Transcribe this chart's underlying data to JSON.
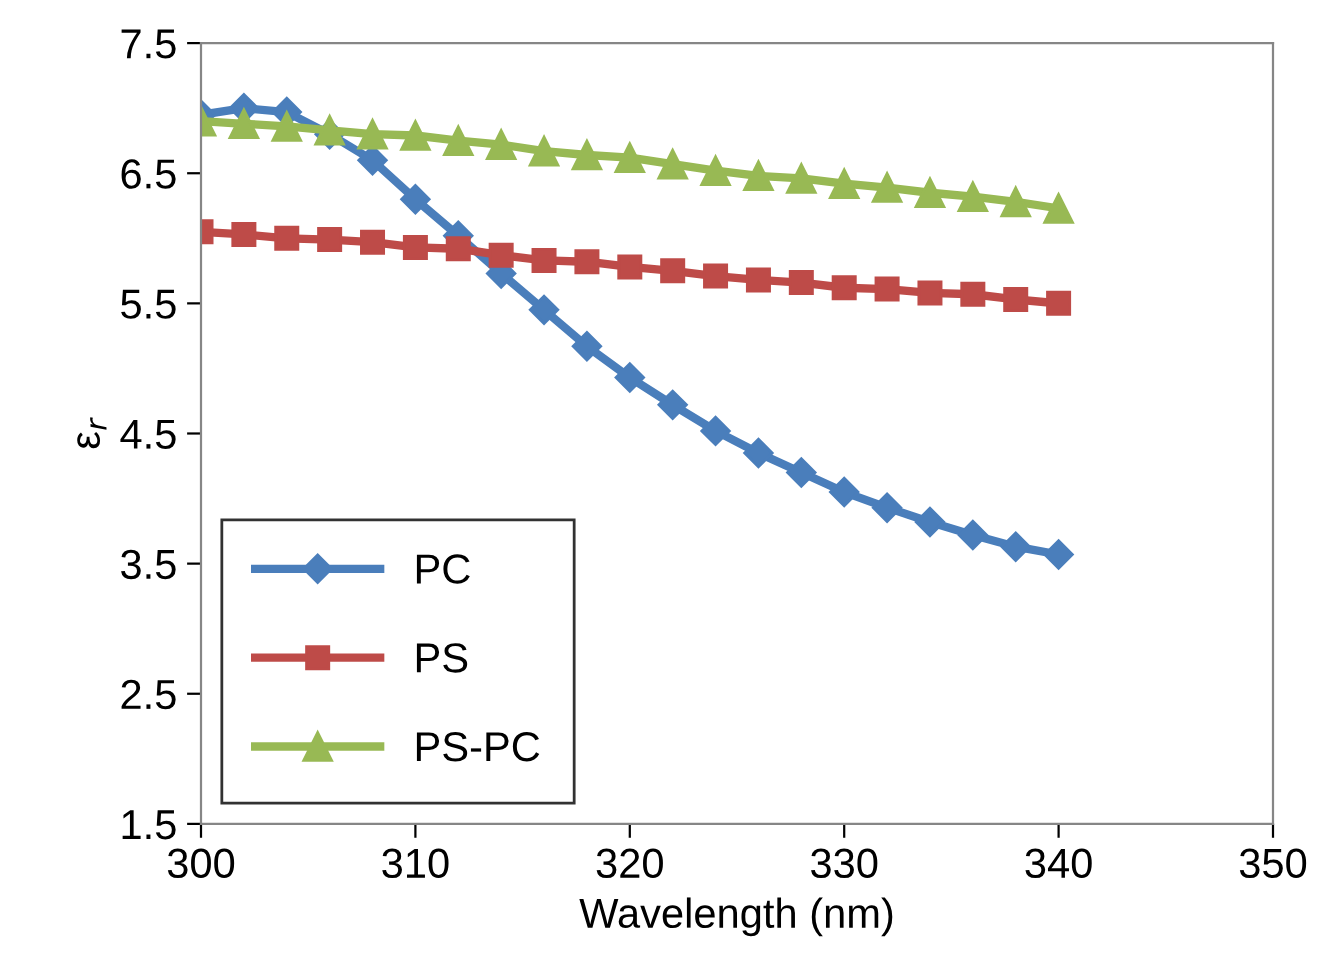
{
  "chart_data": {
    "type": "line",
    "xlabel": "Wavelength (nm)",
    "ylabel": "ε$_{r}$",
    "x": [
      300,
      302,
      304,
      306,
      308,
      310,
      312,
      314,
      316,
      318,
      320,
      322,
      324,
      326,
      328,
      330,
      332,
      334,
      336,
      338,
      340
    ],
    "series": [
      {
        "name": "PC",
        "color": "#4a7ebb",
        "marker": "diamond",
        "values": [
          6.95,
          7.0,
          6.97,
          6.8,
          6.6,
          6.3,
          6.02,
          5.73,
          5.45,
          5.17,
          4.93,
          4.72,
          4.52,
          4.35,
          4.2,
          4.05,
          3.93,
          3.82,
          3.72,
          3.63,
          3.57
        ]
      },
      {
        "name": "PS",
        "color": "#be4b48",
        "marker": "square",
        "values": [
          6.05,
          6.03,
          6.0,
          5.99,
          5.97,
          5.93,
          5.92,
          5.87,
          5.83,
          5.82,
          5.78,
          5.75,
          5.71,
          5.68,
          5.66,
          5.62,
          5.61,
          5.58,
          5.57,
          5.53,
          5.5
        ]
      },
      {
        "name": "PS-PC",
        "color": "#98b954",
        "marker": "triangle",
        "values": [
          6.9,
          6.88,
          6.86,
          6.83,
          6.8,
          6.79,
          6.75,
          6.72,
          6.67,
          6.64,
          6.62,
          6.57,
          6.52,
          6.48,
          6.46,
          6.42,
          6.39,
          6.35,
          6.32,
          6.28,
          6.23
        ]
      }
    ],
    "xlim": [
      300,
      350
    ],
    "xticks": [
      300,
      310,
      320,
      330,
      340,
      350
    ],
    "ylim": [
      1.5,
      7.5
    ],
    "yticks": [
      1.5,
      2.5,
      3.5,
      4.5,
      5.5,
      6.5,
      7.5
    ],
    "grid": false,
    "legend": "bottom left",
    "line_style": "solid"
  }
}
